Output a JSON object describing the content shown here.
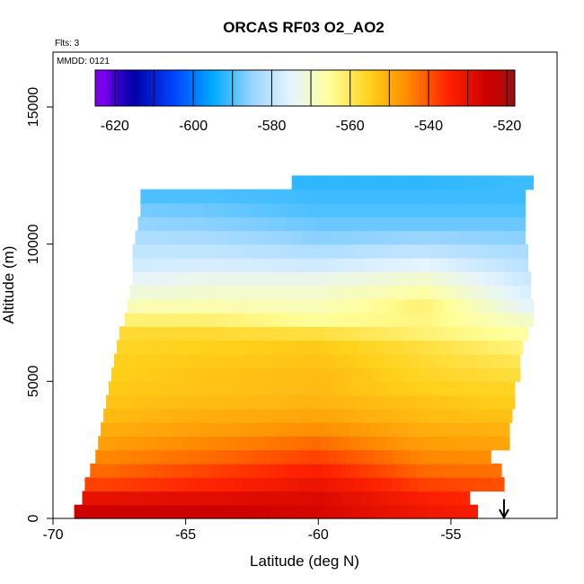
{
  "chart_data": {
    "type": "heatmap",
    "title": "ORCAS RF03 O2_AO2",
    "notes": {
      "flights": "Flts: 3",
      "date": "MMDD: 0121"
    },
    "xlabel": "Latitude (deg N)",
    "ylabel": "Altitude (m)",
    "xlim": [
      -70,
      -51
    ],
    "ylim": [
      0,
      17000
    ],
    "x_ticks": [
      -70,
      -65,
      -60,
      -55
    ],
    "x_tick_labels": [
      "-70",
      "-65",
      "-60",
      "-55"
    ],
    "y_ticks": [
      0,
      5000,
      10000,
      15000
    ],
    "y_tick_labels": [
      "0",
      "5000",
      "10000",
      "15000"
    ],
    "colorbar": {
      "range": [
        -625,
        -518
      ],
      "ticks": [
        -620,
        -600,
        -580,
        -560,
        -540,
        -520
      ],
      "tick_labels": [
        "-620",
        "-600",
        "-580",
        "-560",
        "-540",
        "-520"
      ],
      "boundaries": [
        -625,
        -620,
        -610,
        -600,
        -590,
        -580,
        -570,
        -560,
        -550,
        -540,
        -530,
        -520,
        -518
      ],
      "colors": [
        "#7a00ee",
        "#0000aa",
        "#0044ff",
        "#00aaff",
        "#99d5ff",
        "#e6f4ff",
        "#ffff99",
        "#ffd11a",
        "#ff8800",
        "#ff2200",
        "#cc0000",
        "#991111"
      ]
    },
    "field": {
      "altitudes": [
        250,
        750,
        1250,
        1750,
        2250,
        2750,
        3250,
        3750,
        4250,
        4750,
        5250,
        5750,
        6250,
        6750,
        7250,
        7750,
        8250,
        8750,
        9250,
        9750,
        10250,
        10750,
        11250,
        11750,
        12250
      ],
      "x_extent": [
        [
          -69.2,
          -54.0
        ],
        [
          -68.9,
          -54.3
        ],
        [
          -68.8,
          -53.0
        ],
        [
          -68.6,
          -53.1
        ],
        [
          -68.4,
          -53.5
        ],
        [
          -68.3,
          -52.8
        ],
        [
          -68.2,
          -52.8
        ],
        [
          -68.1,
          -52.7
        ],
        [
          -68.0,
          -52.6
        ],
        [
          -67.9,
          -52.6
        ],
        [
          -67.8,
          -52.4
        ],
        [
          -67.7,
          -52.4
        ],
        [
          -67.6,
          -52.3
        ],
        [
          -67.5,
          -52.1
        ],
        [
          -67.3,
          -51.9
        ],
        [
          -67.2,
          -51.9
        ],
        [
          -67.1,
          -52.0
        ],
        [
          -67.0,
          -52.0
        ],
        [
          -67.0,
          -52.1
        ],
        [
          -67.0,
          -52.1
        ],
        [
          -66.9,
          -52.2
        ],
        [
          -66.8,
          -52.2
        ],
        [
          -66.7,
          -52.2
        ],
        [
          -66.7,
          -52.2
        ],
        [
          -61.0,
          -51.9
        ]
      ],
      "lats": [
        -68,
        -64,
        -60,
        -56,
        -52
      ],
      "values": [
        [
          -525,
          -525,
          -527,
          -532,
          -535
        ],
        [
          -530,
          -529,
          -528,
          -534,
          -537
        ],
        [
          -538,
          -535,
          -531,
          -538,
          -540
        ],
        [
          -542,
          -538,
          -534,
          -542,
          -543
        ],
        [
          -545,
          -542,
          -538,
          -545,
          -546
        ],
        [
          -548,
          -545,
          -542,
          -548,
          -549
        ],
        [
          -550,
          -548,
          -546,
          -550,
          -551
        ],
        [
          -552,
          -550,
          -549,
          -552,
          -553
        ],
        [
          -553,
          -552,
          -551,
          -553,
          -555
        ],
        [
          -554,
          -553,
          -552,
          -555,
          -556
        ],
        [
          -555,
          -553,
          -552,
          -556,
          -558
        ],
        [
          -555,
          -554,
          -553,
          -557,
          -560
        ],
        [
          -556,
          -555,
          -554,
          -558,
          -563
        ],
        [
          -557,
          -557,
          -558,
          -562,
          -566
        ],
        [
          -562,
          -562,
          -565,
          -563,
          -570
        ],
        [
          -568,
          -567,
          -568,
          -562,
          -575
        ],
        [
          -572,
          -570,
          -570,
          -566,
          -577
        ],
        [
          -575,
          -573,
          -573,
          -570,
          -579
        ],
        [
          -578,
          -577,
          -578,
          -575,
          -581
        ],
        [
          -580,
          -580,
          -582,
          -580,
          -583
        ],
        [
          -582,
          -583,
          -586,
          -585,
          -586
        ],
        [
          -585,
          -586,
          -588,
          -588,
          -588
        ],
        [
          -587,
          -588,
          -590,
          -590,
          -590
        ],
        [
          -590,
          -590,
          -591,
          -591,
          -591
        ],
        [
          -592,
          -592,
          -592,
          -592,
          -591
        ]
      ]
    },
    "arrow_marker": {
      "lat": -53,
      "altitude_top": 700
    }
  }
}
